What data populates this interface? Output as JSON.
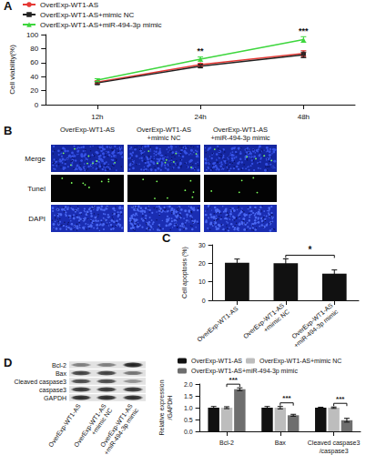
{
  "panel_labels": [
    "A",
    "B",
    "C",
    "D"
  ],
  "chart_data": [
    {
      "type": "line",
      "y_label": "Cell viability(%)",
      "categories": [
        "12h",
        "24h",
        "48h"
      ],
      "ylim": [
        0,
        100
      ],
      "yticks": [
        0,
        20,
        40,
        60,
        80,
        100
      ],
      "grid": false,
      "legend": "top-left",
      "series": [
        {
          "name": "OverExp-WT1-AS",
          "color": "#e53935",
          "marker": "circle",
          "values": [
            32,
            57,
            73
          ],
          "errors": [
            2,
            2,
            4
          ]
        },
        {
          "name": "OverExp-WT1-AS+mimic NC",
          "color": "#222222",
          "marker": "square",
          "values": [
            31,
            55,
            71
          ],
          "errors": [
            2,
            2,
            4
          ]
        },
        {
          "name": "OverExp-WT1-AS+miR-494-3p mimic",
          "color": "#3dd63d",
          "marker": "triangle",
          "values": [
            35,
            65,
            93
          ],
          "errors": [
            2,
            3,
            4
          ]
        }
      ],
      "annotations": [
        {
          "text": "**",
          "category": "24h"
        },
        {
          "text": "***",
          "category": "48h"
        }
      ]
    },
    {
      "type": "bar",
      "y_label": "Cell apoptosis (%)",
      "categories": [
        "OverExp-WT1-AS",
        "OverExp-WT1-AS +mimic NC",
        "OverExp-WT1-AS +miR-494-3p mimic"
      ],
      "values": [
        20.3,
        20.1,
        14.4
      ],
      "errors": [
        2.0,
        2.3,
        2.0
      ],
      "color": "#111111",
      "ylim": [
        0,
        30
      ],
      "yticks": [
        0,
        10,
        20,
        30
      ],
      "grid": false,
      "annotations": [
        {
          "text": "*",
          "between": [
            "OverExp-WT1-AS +mimic NC",
            "OverExp-WT1-AS +miR-494-3p mimic"
          ]
        }
      ]
    },
    {
      "type": "bar",
      "y_label": "Relative expression /GAPDH",
      "categories": [
        "Bcl-2",
        "Bax",
        "Cleaved caspase3 /caspase3"
      ],
      "ylim": [
        0,
        2
      ],
      "yticks": [
        {
          "value": 0,
          "label": "0.0"
        },
        0.5,
        {
          "value": 1,
          "label": "1.0"
        },
        1.5,
        {
          "value": 2,
          "label": "2.0"
        }
      ],
      "grid": false,
      "legend": "top",
      "series": [
        {
          "name": "OverExp-WT1-AS",
          "color": "#111111",
          "values": [
            1,
            1,
            1
          ],
          "errors": [
            0.05,
            0.05,
            0.02
          ]
        },
        {
          "name": "OverExp-WT1-AS+mimic NC",
          "color": "#bdbdbd",
          "values": [
            1,
            1,
            1
          ],
          "errors": [
            0.04,
            0.05,
            0.03
          ]
        },
        {
          "name": "OverExp-WT1-AS+miR-494-3p mimic",
          "color": "#6e6e6e",
          "values": [
            1.78,
            0.68,
            0.47
          ],
          "errors": [
            0.06,
            0.04,
            0.08
          ]
        }
      ],
      "annotations": [
        {
          "text": "***",
          "category": "Bcl-2"
        },
        {
          "text": "***",
          "category": "Bax"
        },
        {
          "text": "***",
          "category": "Cleaved caspase3 /caspase3"
        }
      ]
    }
  ],
  "tunel_images": {
    "columns": [
      "OverExp-WT1-AS",
      "OverExp-WT1-AS +mimic NC",
      "OverExp-WT1-AS +miR-494-3p mimic"
    ],
    "rows": [
      "Merge",
      "Tunel",
      "DAPI"
    ]
  },
  "western_blot": {
    "rows": [
      "Bcl-2",
      "Bax",
      "Cleaved caspase3",
      "caspase3",
      "GAPDH"
    ],
    "columns": [
      "OverExp-WT1-AS",
      "OverExp-WT1-AS+mimic NC",
      "OverExp-WT1-AS+miR-494-3p mimic"
    ]
  }
}
